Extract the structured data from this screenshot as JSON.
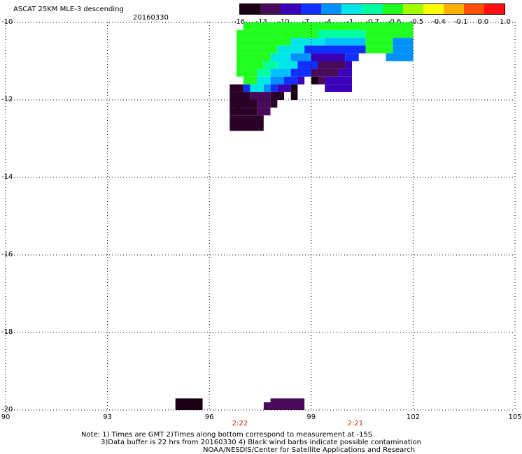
{
  "header": {
    "title": "ASCAT 25KM MLE-3 descending",
    "date": "20160330"
  },
  "colorbar": {
    "ticks": [
      "-16",
      "-13",
      "-10",
      "-7",
      "-4",
      "-1",
      "-0.7",
      "-0.6",
      "-0.5",
      "-0.4",
      "-0.1",
      "0.0",
      "1.0"
    ],
    "colors": [
      "#1a0014",
      "#4a0a5a",
      "#3a00b8",
      "#1030ff",
      "#0090ff",
      "#00e6e6",
      "#00ffa0",
      "#20ff20",
      "#a0ff00",
      "#ffff00",
      "#ffb000",
      "#ff5000",
      "#ff1010"
    ]
  },
  "map": {
    "lon_range": [
      90,
      105
    ],
    "lat_range": [
      -20,
      -10
    ],
    "x_ticks": [
      "90",
      "93",
      "96",
      "99",
      "102",
      "105"
    ],
    "y_ticks": [
      "-10",
      "-12",
      "-14",
      "-16",
      "-18",
      "-20"
    ],
    "times": [
      {
        "label": "2:22",
        "lon": 96.9
      },
      {
        "label": "2:21",
        "lon": 100.3
      }
    ],
    "cells": [
      {
        "lon0": 97.0,
        "lon1": 102.0,
        "lat0": -10.2,
        "lat1": -10.0,
        "c": "#20ff20"
      },
      {
        "lon0": 96.8,
        "lon1": 99.2,
        "lat0": -10.4,
        "lat1": -10.2,
        "c": "#20ff20"
      },
      {
        "lon0": 99.2,
        "lon1": 100.6,
        "lat0": -10.4,
        "lat1": -10.2,
        "c": "#00ffa0"
      },
      {
        "lon0": 100.6,
        "lon1": 102.0,
        "lat0": -10.4,
        "lat1": -10.2,
        "c": "#20ff20"
      },
      {
        "lon0": 96.8,
        "lon1": 98.4,
        "lat0": -10.6,
        "lat1": -10.4,
        "c": "#20ff20"
      },
      {
        "lon0": 98.4,
        "lon1": 99.4,
        "lat0": -10.6,
        "lat1": -10.4,
        "c": "#00e6e6"
      },
      {
        "lon0": 99.4,
        "lon1": 100.6,
        "lat0": -10.6,
        "lat1": -10.4,
        "c": "#00c0ff"
      },
      {
        "lon0": 100.6,
        "lon1": 101.4,
        "lat0": -10.6,
        "lat1": -10.4,
        "c": "#20ff20"
      },
      {
        "lon0": 101.4,
        "lon1": 102.0,
        "lat0": -10.6,
        "lat1": -10.4,
        "c": "#0090ff"
      },
      {
        "lon0": 96.8,
        "lon1": 98.0,
        "lat0": -10.8,
        "lat1": -10.6,
        "c": "#20ff20"
      },
      {
        "lon0": 98.0,
        "lon1": 98.8,
        "lat0": -10.8,
        "lat1": -10.6,
        "c": "#00e6e6"
      },
      {
        "lon0": 98.8,
        "lon1": 100.6,
        "lat0": -10.8,
        "lat1": -10.6,
        "c": "#1030ff"
      },
      {
        "lon0": 100.6,
        "lon1": 101.4,
        "lat0": -10.8,
        "lat1": -10.6,
        "c": "#20ff20"
      },
      {
        "lon0": 101.4,
        "lon1": 102.0,
        "lat0": -10.8,
        "lat1": -10.6,
        "c": "#0090ff"
      },
      {
        "lon0": 96.8,
        "lon1": 97.8,
        "lat0": -11.0,
        "lat1": -10.8,
        "c": "#20ff20"
      },
      {
        "lon0": 97.8,
        "lon1": 98.4,
        "lat0": -11.0,
        "lat1": -10.8,
        "c": "#00e6e6"
      },
      {
        "lon0": 98.4,
        "lon1": 99.0,
        "lat0": -11.0,
        "lat1": -10.8,
        "c": "#0090ff"
      },
      {
        "lon0": 99.0,
        "lon1": 100.0,
        "lat0": -11.0,
        "lat1": -10.8,
        "c": "#3a00b8"
      },
      {
        "lon0": 100.0,
        "lon1": 100.4,
        "lat0": -11.0,
        "lat1": -10.8,
        "c": "#1030ff"
      },
      {
        "lon0": 101.2,
        "lon1": 102.0,
        "lat0": -11.0,
        "lat1": -10.8,
        "c": "#0090ff"
      },
      {
        "lon0": 96.8,
        "lon1": 97.6,
        "lat0": -11.2,
        "lat1": -11.0,
        "c": "#20ff20"
      },
      {
        "lon0": 97.6,
        "lon1": 98.0,
        "lat0": -11.2,
        "lat1": -11.0,
        "c": "#00ffa0"
      },
      {
        "lon0": 98.0,
        "lon1": 98.6,
        "lat0": -11.2,
        "lat1": -11.0,
        "c": "#00e6e6"
      },
      {
        "lon0": 98.6,
        "lon1": 99.2,
        "lat0": -11.2,
        "lat1": -11.0,
        "c": "#1030ff"
      },
      {
        "lon0": 99.2,
        "lon1": 100.0,
        "lat0": -11.2,
        "lat1": -11.0,
        "c": "#4a0a5a"
      },
      {
        "lon0": 100.0,
        "lon1": 100.2,
        "lat0": -11.2,
        "lat1": -11.0,
        "c": "#3a00b8"
      },
      {
        "lon0": 96.8,
        "lon1": 97.4,
        "lat0": -11.4,
        "lat1": -11.2,
        "c": "#20ff20"
      },
      {
        "lon0": 97.4,
        "lon1": 97.8,
        "lat0": -11.4,
        "lat1": -11.2,
        "c": "#00ffa0"
      },
      {
        "lon0": 97.8,
        "lon1": 98.4,
        "lat0": -11.4,
        "lat1": -11.2,
        "c": "#00c0ff"
      },
      {
        "lon0": 98.4,
        "lon1": 99.0,
        "lat0": -11.4,
        "lat1": -11.2,
        "c": "#1030ff"
      },
      {
        "lon0": 99.0,
        "lon1": 99.8,
        "lat0": -11.4,
        "lat1": -11.2,
        "c": "#4a0a5a"
      },
      {
        "lon0": 99.8,
        "lon1": 100.2,
        "lat0": -11.4,
        "lat1": -11.2,
        "c": "#3a00b8"
      },
      {
        "lon0": 97.0,
        "lon1": 97.4,
        "lat0": -11.6,
        "lat1": -11.4,
        "c": "#20ff20"
      },
      {
        "lon0": 97.4,
        "lon1": 97.8,
        "lat0": -11.6,
        "lat1": -11.4,
        "c": "#00e6e6"
      },
      {
        "lon0": 97.8,
        "lon1": 98.2,
        "lat0": -11.6,
        "lat1": -11.4,
        "c": "#0090ff"
      },
      {
        "lon0": 98.2,
        "lon1": 98.6,
        "lat0": -11.6,
        "lat1": -11.4,
        "c": "#1030ff"
      },
      {
        "lon0": 98.6,
        "lon1": 98.8,
        "lat0": -11.6,
        "lat1": -11.4,
        "c": "#3a00b8"
      },
      {
        "lon0": 99.0,
        "lon1": 99.2,
        "lat0": -11.6,
        "lat1": -11.4,
        "c": "#1a0014"
      },
      {
        "lon0": 99.2,
        "lon1": 99.4,
        "lat0": -11.6,
        "lat1": -11.4,
        "c": "#4a0a5a"
      },
      {
        "lon0": 99.4,
        "lon1": 100.2,
        "lat0": -11.6,
        "lat1": -11.4,
        "c": "#3a00b8"
      },
      {
        "lon0": 97.0,
        "lon1": 97.2,
        "lat0": -11.8,
        "lat1": -11.6,
        "c": "#1030ff"
      },
      {
        "lon0": 97.2,
        "lon1": 97.6,
        "lat0": -11.8,
        "lat1": -11.6,
        "c": "#00e6e6"
      },
      {
        "lon0": 97.6,
        "lon1": 97.8,
        "lat0": -11.8,
        "lat1": -11.6,
        "c": "#0090ff"
      },
      {
        "lon0": 97.8,
        "lon1": 98.0,
        "lat0": -11.8,
        "lat1": -11.6,
        "c": "#1030ff"
      },
      {
        "lon0": 98.0,
        "lon1": 98.4,
        "lat0": -11.8,
        "lat1": -11.6,
        "c": "#3a00b8"
      },
      {
        "lon0": 98.4,
        "lon1": 98.6,
        "lat0": -11.8,
        "lat1": -11.6,
        "c": "#1a0014"
      },
      {
        "lon0": 99.4,
        "lon1": 100.2,
        "lat0": -11.8,
        "lat1": -11.6,
        "c": "#3a00b8"
      },
      {
        "lon0": 96.6,
        "lon1": 97.0,
        "lat0": -11.8,
        "lat1": -11.6,
        "c": "#2a0228"
      },
      {
        "lon0": 96.6,
        "lon1": 97.2,
        "lat0": -12.0,
        "lat1": -11.8,
        "c": "#2a0228"
      },
      {
        "lon0": 97.2,
        "lon1": 97.8,
        "lat0": -12.0,
        "lat1": -11.8,
        "c": "#4a0a5a"
      },
      {
        "lon0": 97.8,
        "lon1": 98.2,
        "lat0": -12.0,
        "lat1": -11.8,
        "c": "#2a0228"
      },
      {
        "lon0": 98.4,
        "lon1": 98.6,
        "lat0": -12.0,
        "lat1": -11.8,
        "c": "#1a0014"
      },
      {
        "lon0": 96.6,
        "lon1": 97.4,
        "lat0": -12.2,
        "lat1": -12.0,
        "c": "#2a0228"
      },
      {
        "lon0": 97.4,
        "lon1": 97.8,
        "lat0": -12.2,
        "lat1": -12.0,
        "c": "#4a0a5a"
      },
      {
        "lon0": 97.8,
        "lon1": 98.0,
        "lat0": -12.2,
        "lat1": -12.0,
        "c": "#2a0228"
      },
      {
        "lon0": 96.6,
        "lon1": 97.4,
        "lat0": -12.4,
        "lat1": -12.2,
        "c": "#2a0228"
      },
      {
        "lon0": 97.4,
        "lon1": 97.8,
        "lat0": -12.4,
        "lat1": -12.2,
        "c": "#4a0a5a"
      },
      {
        "lon0": 96.6,
        "lon1": 97.6,
        "lat0": -12.8,
        "lat1": -12.4,
        "c": "#2a0228"
      },
      {
        "lon0": 95.0,
        "lon1": 95.8,
        "lat0": -20.0,
        "lat1": -19.7,
        "c": "#1a0014"
      },
      {
        "lon0": 97.8,
        "lon1": 98.8,
        "lat0": -19.8,
        "lat1": -19.7,
        "c": "#4a0a5a"
      },
      {
        "lon0": 97.6,
        "lon1": 98.8,
        "lat0": -20.0,
        "lat1": -19.8,
        "c": "#4a0a5a"
      }
    ]
  },
  "notes": {
    "line1": "Note: 1) Times are GMT 2)Times along bottom correspond to measurement at -15S",
    "line2": "3)Data buffer is 22 hrs from 20160330 4) Black wind barbs indicate possible contamination",
    "line3": "NOAA/NESDIS/Center for Satellite Applications and Research"
  }
}
